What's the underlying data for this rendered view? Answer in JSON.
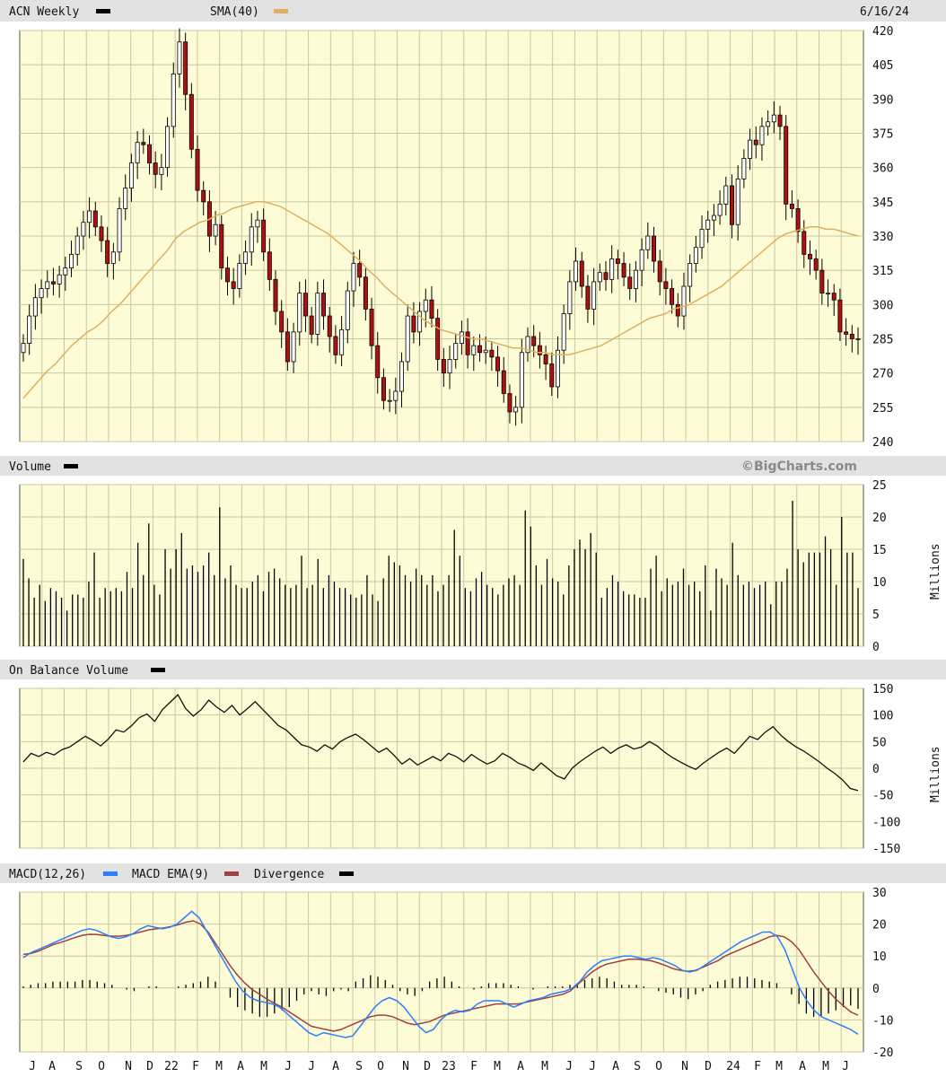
{
  "header": {
    "symbol_label": "ACN Weekly",
    "sma_label": "SMA(40)",
    "date": "6/16/24"
  },
  "volume_panel": {
    "label": "Volume",
    "brand": "©BigCharts.com",
    "unit": "Millions"
  },
  "obv_panel": {
    "label": "On Balance Volume",
    "unit": "Millions"
  },
  "macd_panel": {
    "macd_label": "MACD(12,26)",
    "ema_label": "MACD EMA(9)",
    "div_label": "Divergence"
  },
  "colors": {
    "panel_bg": "#fdfcd6",
    "grid": "#c9c7a0",
    "header_bg": "#e2e2e2",
    "candle_up_fill": "#ffffff",
    "candle_down_fill": "#b01010",
    "sma": "#e0b060",
    "macd": "#2a7fff",
    "macd_ema": "#a04040",
    "line": "#000000"
  },
  "chart_data": [
    {
      "type": "candlestick",
      "title": "ACN Weekly",
      "legend": [
        "ACN Weekly",
        "SMA(40)"
      ],
      "ylim": [
        240,
        420
      ],
      "yticks": [
        240,
        255,
        270,
        285,
        300,
        315,
        330,
        345,
        360,
        375,
        390,
        405,
        420
      ],
      "xticks": [
        "J",
        "A",
        "S",
        "O",
        "N",
        "D",
        "22",
        "F",
        "M",
        "A",
        "M",
        "J",
        "J",
        "A",
        "S",
        "O",
        "N",
        "D",
        "23",
        "F",
        "M",
        "A",
        "M",
        "J",
        "J",
        "A",
        "S",
        "O",
        "N",
        "D",
        "24",
        "F",
        "M",
        "A",
        "M",
        "J"
      ],
      "close": [
        283,
        295,
        303,
        307,
        310,
        309,
        313,
        316,
        322,
        330,
        336,
        341,
        334,
        328,
        318,
        323,
        342,
        351,
        362,
        371,
        370,
        362,
        357,
        360,
        378,
        401,
        415,
        392,
        368,
        350,
        345,
        330,
        335,
        316,
        310,
        307,
        318,
        323,
        334,
        337,
        323,
        311,
        297,
        288,
        275,
        288,
        305,
        295,
        287,
        305,
        295,
        286,
        278,
        289,
        306,
        318,
        312,
        298,
        282,
        268,
        258,
        258,
        262,
        275,
        295,
        288,
        297,
        302,
        294,
        276,
        270,
        276,
        283,
        288,
        278,
        282,
        279,
        280,
        277,
        271,
        261,
        253,
        255,
        279,
        286,
        282,
        278,
        274,
        264,
        280,
        296,
        310,
        319,
        308,
        298,
        310,
        314,
        311,
        320,
        318,
        312,
        307,
        315,
        324,
        330,
        319,
        310,
        307,
        300,
        295,
        308,
        318,
        325,
        333,
        337,
        339,
        344,
        352,
        335,
        355,
        364,
        372,
        370,
        378,
        380,
        383,
        378,
        344,
        342,
        332,
        322,
        320,
        315,
        305,
        305,
        302,
        288,
        287,
        285,
        285
      ],
      "sma40": [
        259,
        263,
        267,
        271,
        274,
        278,
        282,
        285,
        288,
        290,
        293,
        297,
        300,
        304,
        308,
        312,
        316,
        320,
        324,
        329,
        332,
        334,
        336,
        337,
        339,
        340,
        342,
        343,
        344,
        345,
        345,
        344,
        343,
        341,
        339,
        337,
        335,
        333,
        331,
        328,
        325,
        322,
        319,
        315,
        312,
        308,
        305,
        302,
        299,
        296,
        293,
        291,
        289,
        288,
        287,
        286,
        285,
        285,
        284,
        283,
        282,
        281,
        281,
        280,
        279,
        279,
        278,
        278,
        278,
        279,
        280,
        281,
        282,
        284,
        286,
        288,
        290,
        292,
        294,
        295,
        296,
        298,
        299,
        300,
        302,
        304,
        306,
        308,
        311,
        314,
        317,
        320,
        323,
        326,
        329,
        331,
        332,
        333,
        334,
        334,
        333,
        333,
        332,
        331,
        330
      ],
      "ylabel": ""
    },
    {
      "type": "bar",
      "title": "Volume",
      "ylabel": "Millions",
      "ylim": [
        0,
        25
      ],
      "yticks": [
        0,
        5,
        10,
        15,
        20,
        25
      ],
      "values": [
        13.5,
        10.5,
        7.5,
        9.5,
        7,
        9,
        8.5,
        7.5,
        5.5,
        8,
        8,
        7.5,
        10,
        14.5,
        7.5,
        9,
        8.5,
        9,
        8.5,
        11.5,
        9,
        16,
        11,
        19,
        9.5,
        8,
        15,
        12,
        15,
        17.5,
        12,
        12.5,
        11.5,
        12.5,
        14.5,
        11,
        21.5,
        10.5,
        12.5,
        9.5,
        9,
        9,
        10,
        11,
        8.5,
        11.5,
        12,
        10.5,
        9.5,
        9,
        9.5,
        14,
        9,
        9.5,
        13.5,
        9,
        11,
        10,
        9,
        9,
        8,
        7.5,
        8,
        11,
        8,
        7,
        10.5,
        14,
        13,
        12.5,
        11,
        10,
        12,
        11,
        9.5,
        11,
        8.5,
        9.5,
        11,
        18,
        14,
        9,
        8.5,
        10.5,
        11.5,
        9.5,
        9,
        8,
        9.5,
        10.5,
        11,
        9.5,
        21,
        18.5,
        12.5,
        9.5,
        13.5,
        10.5,
        10,
        8,
        12.5,
        15,
        16.5,
        15,
        17.5,
        14.5,
        7.5,
        9,
        11,
        10,
        8.5,
        8,
        8,
        7.5,
        7.5,
        12,
        14,
        8.5,
        10.5,
        9.5,
        10,
        12,
        9.5,
        10,
        8.5,
        12.5,
        5.5,
        12,
        10.5,
        9.5,
        16,
        11,
        9.5,
        10,
        9,
        9.5,
        10,
        6.5,
        10,
        10,
        12,
        22.5,
        15,
        13,
        14.5,
        14.5,
        14.5,
        17,
        15,
        9.5,
        20,
        14.5,
        14.5,
        9
      ],
      "xticks": [
        "J",
        "A",
        "S",
        "O",
        "N",
        "D",
        "22",
        "F",
        "M",
        "A",
        "M",
        "J",
        "J",
        "A",
        "S",
        "O",
        "N",
        "D",
        "23",
        "F",
        "M",
        "A",
        "M",
        "J",
        "J",
        "A",
        "S",
        "O",
        "N",
        "D",
        "24",
        "F",
        "M",
        "A",
        "M",
        "J"
      ]
    },
    {
      "type": "line",
      "title": "On Balance Volume",
      "ylabel": "Millions",
      "ylim": [
        -150,
        150
      ],
      "yticks": [
        150,
        100,
        50,
        0,
        -50,
        -100,
        -150
      ],
      "values": [
        12,
        28,
        22,
        30,
        25,
        35,
        40,
        50,
        60,
        52,
        42,
        55,
        72,
        68,
        80,
        95,
        102,
        88,
        110,
        124,
        138,
        112,
        98,
        110,
        128,
        115,
        105,
        118,
        100,
        112,
        125,
        110,
        95,
        80,
        72,
        58,
        44,
        40,
        32,
        44,
        36,
        50,
        58,
        64,
        54,
        42,
        30,
        38,
        24,
        8,
        18,
        6,
        14,
        22,
        14,
        28,
        22,
        12,
        26,
        16,
        8,
        14,
        28,
        20,
        10,
        4,
        -4,
        10,
        -2,
        -14,
        -20,
        0,
        12,
        22,
        32,
        40,
        28,
        38,
        44,
        36,
        40,
        50,
        42,
        30,
        20,
        12,
        4,
        -2,
        10,
        20,
        30,
        38,
        28,
        44,
        60,
        54,
        68,
        78,
        62,
        50,
        40,
        32,
        22,
        12,
        0,
        -10,
        -22,
        -38,
        -42
      ],
      "xticks": [
        "J",
        "A",
        "S",
        "O",
        "N",
        "D",
        "22",
        "F",
        "M",
        "A",
        "M",
        "J",
        "J",
        "A",
        "S",
        "O",
        "N",
        "D",
        "23",
        "F",
        "M",
        "A",
        "M",
        "J",
        "J",
        "A",
        "S",
        "O",
        "N",
        "D",
        "24",
        "F",
        "M",
        "A",
        "M",
        "J"
      ]
    },
    {
      "type": "line",
      "title": "MACD(12,26)",
      "ylim": [
        -20,
        30
      ],
      "yticks": [
        30,
        20,
        10,
        0,
        -10,
        -20
      ],
      "series": [
        {
          "name": "MACD(12,26)",
          "values": [
            9.5,
            11,
            12,
            13,
            14,
            15,
            16,
            17,
            18,
            18.5,
            18,
            17,
            16,
            15.5,
            16,
            17,
            18.5,
            19.5,
            19,
            18.5,
            19,
            20,
            22,
            24,
            22,
            18,
            14,
            10,
            6,
            2,
            -1,
            -3,
            -4,
            -4.5,
            -5,
            -6,
            -8,
            -10,
            -12,
            -14,
            -15,
            -14,
            -14.5,
            -15,
            -15.5,
            -15,
            -12,
            -9,
            -6,
            -4,
            -3,
            -4,
            -6,
            -9,
            -12,
            -14,
            -13,
            -10,
            -8,
            -7,
            -7.5,
            -7,
            -5,
            -4,
            -4,
            -4,
            -5,
            -6,
            -5,
            -4,
            -3.5,
            -3,
            -2,
            -1.5,
            -1,
            0,
            2,
            5,
            7,
            8.5,
            9,
            9.5,
            10,
            10,
            9.5,
            9,
            9.5,
            9,
            8,
            7,
            5.5,
            5,
            5.5,
            7,
            8.5,
            10,
            11.5,
            13,
            14.5,
            15.5,
            16.5,
            17.5,
            17.5,
            16,
            12,
            6,
            0,
            -4,
            -7,
            -9,
            -10,
            -11,
            -12,
            -13,
            -14.5
          ]
        },
        {
          "name": "MACD EMA(9)",
          "values": [
            10.5,
            10.8,
            11.5,
            12.5,
            13.5,
            14.2,
            15,
            15.8,
            16.5,
            16.8,
            16.7,
            16.4,
            16.2,
            16.2,
            16.5,
            17,
            17.6,
            18.2,
            18.5,
            18.8,
            19.2,
            19.8,
            20.6,
            21,
            20,
            17.5,
            14,
            10.5,
            7,
            4,
            1.5,
            -0.5,
            -2,
            -3.5,
            -4.8,
            -6,
            -7.5,
            -9,
            -10.5,
            -12,
            -12.5,
            -13,
            -13.5,
            -13,
            -12,
            -11,
            -10,
            -9,
            -8.5,
            -8.5,
            -9,
            -10,
            -11,
            -11.5,
            -11,
            -10.5,
            -9.5,
            -8.5,
            -8,
            -7.5,
            -7,
            -6.5,
            -6,
            -5.5,
            -5,
            -5,
            -5,
            -5,
            -4.5,
            -4,
            -3.5,
            -3,
            -2.5,
            -2,
            -1,
            1,
            3,
            5,
            6.5,
            7.5,
            8,
            8.5,
            9,
            9,
            8.8,
            8.5,
            7.8,
            7,
            6,
            5.5,
            5.2,
            5.5,
            6.5,
            7.5,
            8.5,
            10,
            11,
            12,
            13,
            14,
            15,
            16,
            16.5,
            16,
            14.5,
            12,
            8.5,
            5,
            2,
            -1,
            -3.5,
            -5.5,
            -7.5,
            -8.5
          ]
        },
        {
          "name": "Divergence",
          "values": [
            0.5,
            1,
            1.5,
            1.5,
            2,
            2,
            2,
            2,
            2.5,
            2.5,
            2,
            1.5,
            1,
            0,
            -0.5,
            -1,
            0,
            0.5,
            0.5,
            0,
            0,
            0.5,
            1,
            1.5,
            2,
            3.5,
            2,
            0,
            -3,
            -6,
            -7,
            -8,
            -9,
            -9,
            -8,
            -7,
            -6,
            -4,
            -2,
            -1,
            -2,
            -2.5,
            -1,
            -0.5,
            -1,
            2,
            3,
            4,
            3.5,
            2.5,
            1,
            -1,
            -2,
            -2.5,
            -1,
            2,
            3,
            3.5,
            2,
            0.5,
            0,
            -0.5,
            0.5,
            1.5,
            1.5,
            1.5,
            1,
            0.5,
            0,
            -0.5,
            0,
            0.5,
            0.5,
            0.5,
            1,
            1.5,
            2.5,
            3,
            3.5,
            3,
            2,
            1,
            1,
            1,
            0.5,
            0,
            -1,
            -1.5,
            -2,
            -3,
            -3.5,
            -2,
            -1,
            1,
            2,
            2.5,
            3,
            3.5,
            3.5,
            3,
            2.5,
            2,
            1.5,
            0,
            -2,
            -5,
            -8,
            -9,
            -9,
            -8,
            -7,
            -6,
            -5.5,
            -6.5
          ]
        }
      ],
      "xticks": [
        "J",
        "A",
        "S",
        "O",
        "N",
        "D",
        "22",
        "F",
        "M",
        "A",
        "M",
        "J",
        "J",
        "A",
        "S",
        "O",
        "N",
        "D",
        "23",
        "F",
        "M",
        "A",
        "M",
        "J",
        "J",
        "A",
        "S",
        "O",
        "N",
        "D",
        "24",
        "F",
        "M",
        "A",
        "M",
        "J"
      ]
    }
  ]
}
